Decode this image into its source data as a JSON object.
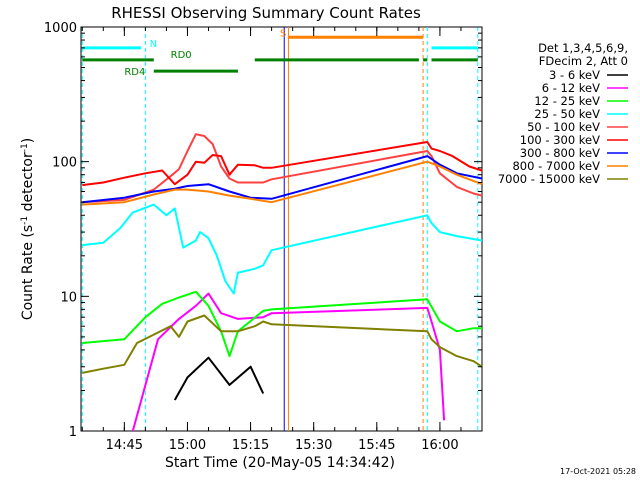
{
  "chart_data": {
    "type": "line",
    "title": "RHESSI Observing Summary Count Rates",
    "xlabel": "Start Time (20-May-05 14:34:42)",
    "ylabel": "Count Rate (s",
    "ylabel_sup1": "-1",
    "ylabel_mid": " detector",
    "ylabel_sup2": "-1",
    "ylabel_end": ")",
    "y_scale": "log",
    "ylim": [
      1,
      1000
    ],
    "y_ticks": [
      {
        "v": 1,
        "label": "1"
      },
      {
        "v": 10,
        "label": "10"
      },
      {
        "v": 100,
        "label": "100"
      },
      {
        "v": 1000,
        "label": "1000"
      }
    ],
    "xlim": [
      "14:34:42",
      "16:10:00"
    ],
    "x_ticks": [
      "14:45",
      "15:00",
      "15:15",
      "15:30",
      "15:45",
      "16:00"
    ],
    "footer": "17-Oct-2021 05:28",
    "legend_title": [
      "Det 1,3,4,5,6,9,",
      "FDecim 2, Att 0"
    ],
    "series": [
      {
        "name": "3 - 6 keV",
        "color": "#000000",
        "points": [
          [
            "14:57",
            1.7
          ],
          [
            "15:00",
            2.5
          ],
          [
            "15:05",
            3.5
          ],
          [
            "15:10",
            2.2
          ],
          [
            "15:15",
            3.0
          ],
          [
            "15:18",
            1.9
          ]
        ]
      },
      {
        "name": "6 - 12 keV",
        "color": "#ff00ff",
        "points": [
          [
            "14:47",
            1.0
          ],
          [
            "14:53",
            4.8
          ],
          [
            "14:58",
            6.8
          ],
          [
            "15:02",
            8.5
          ],
          [
            "15:05",
            10.5
          ],
          [
            "15:08",
            7.5
          ],
          [
            "15:12",
            6.8
          ],
          [
            "15:18",
            7.0
          ],
          [
            "15:20",
            7.5
          ],
          [
            "15:57",
            8.2
          ],
          [
            "15:58",
            6.5
          ],
          [
            "16:00",
            4.0
          ],
          [
            "16:01",
            1.2
          ]
        ]
      },
      {
        "name": "12 - 25 keV",
        "color": "#00ff00",
        "points": [
          [
            "14:35",
            4.5
          ],
          [
            "14:45",
            4.8
          ],
          [
            "14:50",
            7.0
          ],
          [
            "14:54",
            8.8
          ],
          [
            "14:58",
            9.8
          ],
          [
            "15:02",
            10.8
          ],
          [
            "15:05",
            8.5
          ],
          [
            "15:08",
            5.5
          ],
          [
            "15:10",
            3.6
          ],
          [
            "15:12",
            5.5
          ],
          [
            "15:18",
            7.8
          ],
          [
            "15:20",
            8.0
          ],
          [
            "15:57",
            9.5
          ],
          [
            "16:00",
            6.5
          ],
          [
            "16:04",
            5.5
          ],
          [
            "16:08",
            5.8
          ],
          [
            "16:10",
            5.8
          ]
        ]
      },
      {
        "name": "25 - 50 keV",
        "color": "#00ffff",
        "points": [
          [
            "14:35",
            24
          ],
          [
            "14:40",
            25
          ],
          [
            "14:44",
            32
          ],
          [
            "14:47",
            42
          ],
          [
            "14:52",
            48
          ],
          [
            "14:55",
            40
          ],
          [
            "14:57",
            45
          ],
          [
            "14:59",
            23
          ],
          [
            "15:02",
            26
          ],
          [
            "15:03",
            30
          ],
          [
            "15:05",
            27
          ],
          [
            "15:07",
            20
          ],
          [
            "15:09",
            13
          ],
          [
            "15:11",
            10.5
          ],
          [
            "15:12",
            15
          ],
          [
            "15:16",
            16
          ],
          [
            "15:18",
            17
          ],
          [
            "15:20",
            22
          ],
          [
            "15:57",
            40
          ],
          [
            "15:58",
            35
          ],
          [
            "16:00",
            30
          ],
          [
            "16:04",
            28
          ],
          [
            "16:10",
            26
          ]
        ]
      },
      {
        "name": "50 - 100 keV",
        "color": "#ff4040",
        "points": [
          [
            "14:35",
            50
          ],
          [
            "14:45",
            52
          ],
          [
            "14:52",
            62
          ],
          [
            "14:56",
            78
          ],
          [
            "14:58",
            88
          ],
          [
            "15:00",
            120
          ],
          [
            "15:02",
            160
          ],
          [
            "15:04",
            155
          ],
          [
            "15:06",
            135
          ],
          [
            "15:08",
            92
          ],
          [
            "15:10",
            75
          ],
          [
            "15:12",
            70
          ],
          [
            "15:18",
            70
          ],
          [
            "15:20",
            74
          ],
          [
            "15:57",
            120
          ],
          [
            "15:58",
            110
          ],
          [
            "16:00",
            82
          ],
          [
            "16:04",
            65
          ],
          [
            "16:08",
            58
          ],
          [
            "16:10",
            56
          ]
        ]
      },
      {
        "name": "100 - 300 keV",
        "color": "#ff0000",
        "points": [
          [
            "14:35",
            67
          ],
          [
            "14:40",
            70
          ],
          [
            "14:45",
            76
          ],
          [
            "14:50",
            82
          ],
          [
            "14:54",
            86
          ],
          [
            "14:57",
            68
          ],
          [
            "15:00",
            80
          ],
          [
            "15:02",
            100
          ],
          [
            "15:04",
            98
          ],
          [
            "15:06",
            112
          ],
          [
            "15:08",
            110
          ],
          [
            "15:10",
            80
          ],
          [
            "15:12",
            95
          ],
          [
            "15:16",
            94
          ],
          [
            "15:18",
            90
          ],
          [
            "15:20",
            90
          ],
          [
            "15:57",
            140
          ],
          [
            "15:58",
            125
          ],
          [
            "16:00",
            120
          ],
          [
            "16:03",
            110
          ],
          [
            "16:07",
            92
          ],
          [
            "16:10",
            86
          ]
        ]
      },
      {
        "name": "300 - 800 keV",
        "color": "#0000ff",
        "points": [
          [
            "14:35",
            50
          ],
          [
            "14:45",
            54
          ],
          [
            "14:52",
            60
          ],
          [
            "14:57",
            63
          ],
          [
            "15:00",
            66
          ],
          [
            "15:05",
            68
          ],
          [
            "15:10",
            60
          ],
          [
            "15:15",
            54
          ],
          [
            "15:20",
            53
          ],
          [
            "15:57",
            110
          ],
          [
            "16:00",
            95
          ],
          [
            "16:04",
            82
          ],
          [
            "16:10",
            75
          ]
        ]
      },
      {
        "name": "800 - 7000 keV",
        "color": "#ff8000",
        "points": [
          [
            "14:35",
            48
          ],
          [
            "14:45",
            50
          ],
          [
            "14:52",
            57
          ],
          [
            "14:57",
            62
          ],
          [
            "15:00",
            62
          ],
          [
            "15:05",
            60
          ],
          [
            "15:10",
            56
          ],
          [
            "15:15",
            53
          ],
          [
            "15:20",
            50
          ],
          [
            "15:57",
            100
          ],
          [
            "16:00",
            92
          ],
          [
            "16:04",
            80
          ],
          [
            "16:10",
            68
          ]
        ]
      },
      {
        "name": "7000 - 15000 keV",
        "color": "#808000",
        "points": [
          [
            "14:35",
            2.7
          ],
          [
            "14:40",
            2.9
          ],
          [
            "14:45",
            3.1
          ],
          [
            "14:48",
            4.5
          ],
          [
            "14:52",
            5.2
          ],
          [
            "14:56",
            6.0
          ],
          [
            "14:58",
            5.0
          ],
          [
            "15:00",
            6.5
          ],
          [
            "15:04",
            7.2
          ],
          [
            "15:08",
            5.5
          ],
          [
            "15:12",
            5.5
          ],
          [
            "15:16",
            6.0
          ],
          [
            "15:18",
            6.5
          ],
          [
            "15:20",
            6.2
          ],
          [
            "15:57",
            5.5
          ],
          [
            "15:58",
            4.8
          ],
          [
            "16:00",
            4.2
          ],
          [
            "16:04",
            3.6
          ],
          [
            "16:08",
            3.3
          ],
          [
            "16:10",
            3.0
          ]
        ]
      }
    ],
    "markers": [
      {
        "time": "15:23",
        "color": "#0000ff",
        "style": "solid"
      },
      {
        "time": "15:24",
        "color": "#ff8000",
        "style": "solid"
      },
      {
        "time": "15:56",
        "color": "#ff8000",
        "style": "dashed"
      },
      {
        "time": "14:35",
        "color": "#00ffff",
        "style": "dashed"
      },
      {
        "time": "14:50",
        "color": "#00ffff",
        "style": "dashed"
      },
      {
        "time": "15:57",
        "color": "#00ffff",
        "style": "dashed"
      },
      {
        "time": "16:09",
        "color": "#00ffff",
        "style": "dashed"
      }
    ],
    "state_bars": [
      {
        "color": "#00ffff",
        "y": 700,
        "segments": [
          [
            "14:35",
            "14:49"
          ],
          [
            "15:58",
            "16:09"
          ]
        ]
      },
      {
        "color": "#ff8000",
        "y": 840,
        "segments": [
          [
            "15:24",
            "15:56"
          ]
        ]
      },
      {
        "color": "#008000",
        "y": 570,
        "segments": [
          [
            "14:35",
            "14:52"
          ],
          [
            "15:16",
            "15:55"
          ],
          [
            "15:56",
            "15:57"
          ],
          [
            "15:58",
            "16:09"
          ]
        ]
      },
      {
        "color": "#008000",
        "y": 470,
        "segments": [
          [
            "14:52",
            "15:12"
          ]
        ]
      }
    ],
    "state_labels": [
      {
        "text": "N",
        "time": "14:51",
        "y": 710,
        "color": "#00ffff"
      },
      {
        "text": "S",
        "time": "15:22",
        "y": 850,
        "color": "#ff8000"
      },
      {
        "text": "RD0",
        "time": "14:56",
        "y": 590,
        "color": "#008000"
      },
      {
        "text": "RD4",
        "time": "14:45",
        "y": 440,
        "color": "#008000"
      }
    ]
  }
}
